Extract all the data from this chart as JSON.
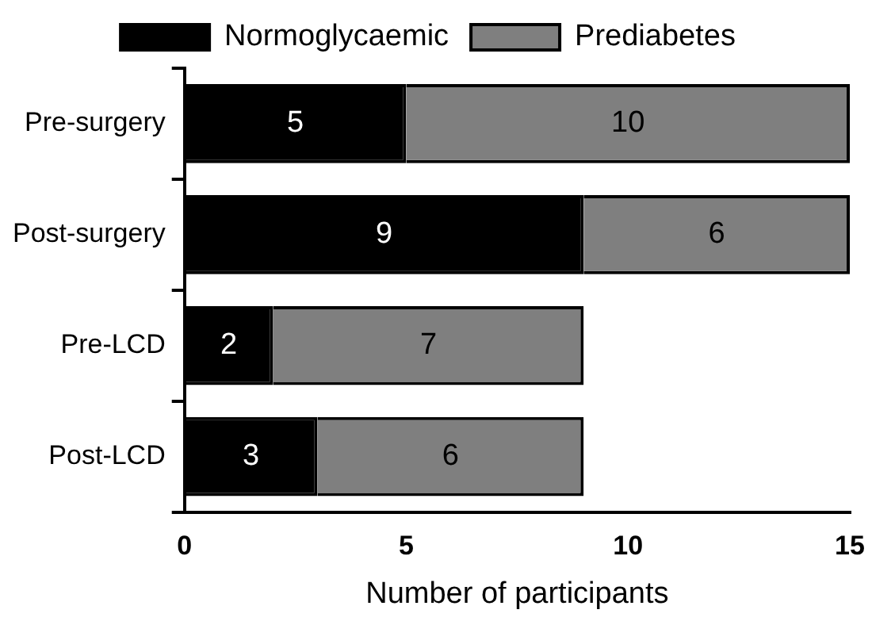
{
  "chart_data": {
    "type": "bar",
    "orientation": "horizontal",
    "stacked": true,
    "xlabel": "Number of participants",
    "categories": [
      "Pre-surgery",
      "Post-surgery",
      "Pre-LCD",
      "Post-LCD"
    ],
    "series": [
      {
        "name": "Normoglycaemic",
        "color": "#000000",
        "values": [
          5,
          9,
          2,
          3
        ]
      },
      {
        "name": "Prediabetes",
        "color": "#7f7f7f",
        "values": [
          10,
          6,
          7,
          6
        ]
      }
    ],
    "xlim": [
      0,
      15
    ],
    "xticks": [
      0,
      5,
      10,
      15
    ],
    "data_labels": true,
    "legend": "top",
    "grid": false
  }
}
